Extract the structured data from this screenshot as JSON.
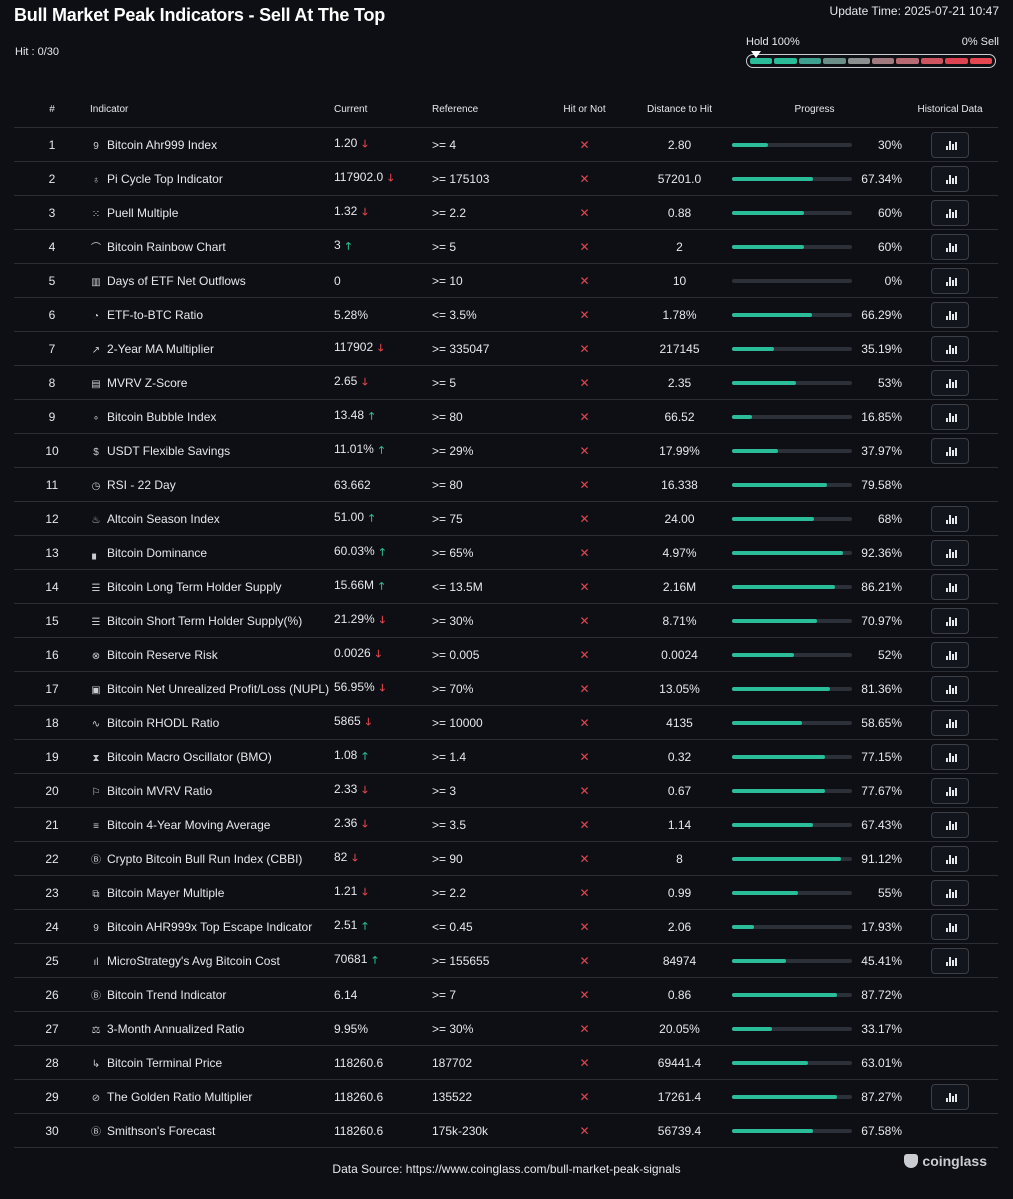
{
  "header": {
    "title": "Bull Market Peak Indicators - Sell At The Top",
    "update_time": "Update Time: 2025-07-21 10:47",
    "hit_count": "Hit : 0/30",
    "hold_label": "Hold 100%",
    "sell_label": "0% Sell",
    "meter_colors": [
      "#2bbd9a",
      "#2bbd9a",
      "#3ea08e",
      "#6a8e88",
      "#8c8f8f",
      "#a07a7e",
      "#b86a72",
      "#cc5560",
      "#dd4350",
      "#e5464f"
    ]
  },
  "columns": {
    "num": "#",
    "indicator": "Indicator",
    "current": "Current",
    "reference": "Reference",
    "hit": "Hit or Not",
    "distance": "Distance to Hit",
    "progress": "Progress",
    "historical": "Historical Data"
  },
  "colors": {
    "accent": "#2bbd9a",
    "down": "#e5464f",
    "up": "#2dbd96",
    "background": "#0d0f14"
  },
  "rows": [
    {
      "num": "1",
      "icon": "ahr999-icon",
      "glyph": "9",
      "name": "Bitcoin Ahr999 Index",
      "current": "1.20",
      "trend": "down",
      "reference": ">= 4",
      "hit": "✕",
      "distance": "2.80",
      "progress": 30,
      "progress_label": "30%",
      "historical": true
    },
    {
      "num": "2",
      "icon": "pi-cycle-icon",
      "glyph": "♁",
      "name": "Pi Cycle Top Indicator",
      "current": "117902.0",
      "trend": "down",
      "reference": ">= 175103",
      "hit": "✕",
      "distance": "57201.0",
      "progress": 67.34,
      "progress_label": "67.34%",
      "historical": true
    },
    {
      "num": "3",
      "icon": "puell-icon",
      "glyph": "⁙",
      "name": "Puell Multiple",
      "current": "1.32",
      "trend": "down",
      "reference": ">= 2.2",
      "hit": "✕",
      "distance": "0.88",
      "progress": 60,
      "progress_label": "60%",
      "historical": true
    },
    {
      "num": "4",
      "icon": "rainbow-icon",
      "glyph": "⌒",
      "name": "Bitcoin Rainbow Chart",
      "current": "3",
      "trend": "up",
      "reference": ">= 5",
      "hit": "✕",
      "distance": "2",
      "progress": 60,
      "progress_label": "60%",
      "historical": true
    },
    {
      "num": "5",
      "icon": "bar-chart-icon",
      "glyph": "▥",
      "name": "Days of ETF Net Outflows",
      "current": "0",
      "trend": "",
      "reference": ">= 10",
      "hit": "✕",
      "distance": "10",
      "progress": 0,
      "progress_label": "0%",
      "historical": true
    },
    {
      "num": "6",
      "icon": "pie-chart-icon",
      "glyph": "◔",
      "name": "ETF-to-BTC Ratio",
      "current": "5.28%",
      "trend": "",
      "reference": "<= 3.5%",
      "hit": "✕",
      "distance": "1.78%",
      "progress": 66.29,
      "progress_label": "66.29%",
      "historical": true
    },
    {
      "num": "7",
      "icon": "line-chart-icon",
      "glyph": "↗",
      "name": "2-Year MA Multiplier",
      "current": "117902",
      "trend": "down",
      "reference": ">= 335047",
      "hit": "✕",
      "distance": "217145",
      "progress": 35.19,
      "progress_label": "35.19%",
      "historical": true
    },
    {
      "num": "8",
      "icon": "mvrv-icon",
      "glyph": "▤",
      "name": "MVRV Z-Score",
      "current": "2.65",
      "trend": "down",
      "reference": ">= 5",
      "hit": "✕",
      "distance": "2.35",
      "progress": 53,
      "progress_label": "53%",
      "historical": true
    },
    {
      "num": "9",
      "icon": "bubble-icon",
      "glyph": "∘",
      "name": "Bitcoin Bubble Index",
      "current": "13.48",
      "trend": "up",
      "reference": ">= 80",
      "hit": "✕",
      "distance": "66.52",
      "progress": 16.85,
      "progress_label": "16.85%",
      "historical": true
    },
    {
      "num": "10",
      "icon": "dollar-icon",
      "glyph": "$",
      "name": "USDT Flexible Savings",
      "current": "11.01%",
      "trend": "up",
      "reference": ">= 29%",
      "hit": "✕",
      "distance": "17.99%",
      "progress": 37.97,
      "progress_label": "37.97%",
      "historical": true
    },
    {
      "num": "11",
      "icon": "clock-icon",
      "glyph": "◷",
      "name": "RSI - 22 Day",
      "current": "63.662",
      "trend": "",
      "reference": ">= 80",
      "hit": "✕",
      "distance": "16.338",
      "progress": 79.58,
      "progress_label": "79.58%",
      "historical": false
    },
    {
      "num": "12",
      "icon": "flame-icon",
      "glyph": "♨",
      "name": "Altcoin Season Index",
      "current": "51.00",
      "trend": "up",
      "reference": ">= 75",
      "hit": "✕",
      "distance": "24.00",
      "progress": 68,
      "progress_label": "68%",
      "historical": true
    },
    {
      "num": "13",
      "icon": "signal-icon",
      "glyph": "▖",
      "name": "Bitcoin Dominance",
      "current": "60.03%",
      "trend": "up",
      "reference": ">= 65%",
      "hit": "✕",
      "distance": "4.97%",
      "progress": 92.36,
      "progress_label": "92.36%",
      "historical": true
    },
    {
      "num": "14",
      "icon": "database-icon",
      "glyph": "☰",
      "name": "Bitcoin Long Term Holder Supply",
      "current": "15.66M",
      "trend": "up",
      "reference": "<= 13.5M",
      "hit": "✕",
      "distance": "2.16M",
      "progress": 86.21,
      "progress_label": "86.21%",
      "historical": true
    },
    {
      "num": "15",
      "icon": "database-icon",
      "glyph": "☰",
      "name": "Bitcoin Short Term Holder Supply(%)",
      "current": "21.29%",
      "trend": "down",
      "reference": ">= 30%",
      "hit": "✕",
      "distance": "8.71%",
      "progress": 70.97,
      "progress_label": "70.97%",
      "historical": true
    },
    {
      "num": "16",
      "icon": "reserve-risk-icon",
      "glyph": "⊗",
      "name": "Bitcoin Reserve Risk",
      "current": "0.0026",
      "trend": "down",
      "reference": ">= 0.005",
      "hit": "✕",
      "distance": "0.0024",
      "progress": 52,
      "progress_label": "52%",
      "historical": true
    },
    {
      "num": "17",
      "icon": "nupl-icon",
      "glyph": "▣",
      "name": "Bitcoin Net Unrealized Profit/Loss (NUPL)",
      "current": "56.95%",
      "trend": "down",
      "reference": ">= 70%",
      "hit": "✕",
      "distance": "13.05%",
      "progress": 81.36,
      "progress_label": "81.36%",
      "historical": true
    },
    {
      "num": "18",
      "icon": "pulse-icon",
      "glyph": "∿",
      "name": "Bitcoin RHODL Ratio",
      "current": "5865",
      "trend": "down",
      "reference": ">= 10000",
      "hit": "✕",
      "distance": "4135",
      "progress": 58.65,
      "progress_label": "58.65%",
      "historical": true
    },
    {
      "num": "19",
      "icon": "hourglass-icon",
      "glyph": "⧗",
      "name": "Bitcoin Macro Oscillator (BMO)",
      "current": "1.08",
      "trend": "up",
      "reference": ">= 1.4",
      "hit": "✕",
      "distance": "0.32",
      "progress": 77.15,
      "progress_label": "77.15%",
      "historical": true
    },
    {
      "num": "20",
      "icon": "flag-icon",
      "glyph": "⚐",
      "name": "Bitcoin MVRV Ratio",
      "current": "2.33",
      "trend": "down",
      "reference": ">= 3",
      "hit": "✕",
      "distance": "0.67",
      "progress": 77.67,
      "progress_label": "77.67%",
      "historical": true
    },
    {
      "num": "21",
      "icon": "list-icon",
      "glyph": "≡",
      "name": "Bitcoin 4-Year Moving Average",
      "current": "2.36",
      "trend": "down",
      "reference": ">= 3.5",
      "hit": "✕",
      "distance": "1.14",
      "progress": 67.43,
      "progress_label": "67.43%",
      "historical": true
    },
    {
      "num": "22",
      "icon": "bitcoin-coin-icon",
      "glyph": "Ⓑ",
      "name": "Crypto Bitcoin Bull Run Index (CBBI)",
      "current": "82",
      "trend": "down",
      "reference": ">= 90",
      "hit": "✕",
      "distance": "8",
      "progress": 91.12,
      "progress_label": "91.12%",
      "historical": true
    },
    {
      "num": "23",
      "icon": "copy-icon",
      "glyph": "⧉",
      "name": "Bitcoin Mayer Multiple",
      "current": "1.21",
      "trend": "down",
      "reference": ">= 2.2",
      "hit": "✕",
      "distance": "0.99",
      "progress": 55,
      "progress_label": "55%",
      "historical": true
    },
    {
      "num": "24",
      "icon": "ahr999-icon",
      "glyph": "9",
      "name": "Bitcoin AHR999x Top Escape Indicator",
      "current": "2.51",
      "trend": "up",
      "reference": "<= 0.45",
      "hit": "✕",
      "distance": "2.06",
      "progress": 17.93,
      "progress_label": "17.93%",
      "historical": true
    },
    {
      "num": "25",
      "icon": "bars-icon",
      "glyph": "ıl",
      "name": "MicroStrategy's Avg Bitcoin Cost",
      "current": "70681",
      "trend": "up",
      "reference": ">= 155655",
      "hit": "✕",
      "distance": "84974",
      "progress": 45.41,
      "progress_label": "45.41%",
      "historical": true
    },
    {
      "num": "26",
      "icon": "bitcoin-coin-icon",
      "glyph": "Ⓑ",
      "name": "Bitcoin Trend Indicator",
      "current": "6.14",
      "trend": "",
      "reference": ">= 7",
      "hit": "✕",
      "distance": "0.86",
      "progress": 87.72,
      "progress_label": "87.72%",
      "historical": false
    },
    {
      "num": "27",
      "icon": "scale-icon",
      "glyph": "⚖",
      "name": "3-Month Annualized Ratio",
      "current": "9.95%",
      "trend": "",
      "reference": ">= 30%",
      "hit": "✕",
      "distance": "20.05%",
      "progress": 33.17,
      "progress_label": "33.17%",
      "historical": false
    },
    {
      "num": "28",
      "icon": "terminal-price-icon",
      "glyph": "↳",
      "name": "Bitcoin Terminal Price",
      "current": "118260.6",
      "trend": "",
      "reference": "187702",
      "hit": "✕",
      "distance": "69441.4",
      "progress": 63.01,
      "progress_label": "63.01%",
      "historical": false
    },
    {
      "num": "29",
      "icon": "golden-ratio-icon",
      "glyph": "⊘",
      "name": "The Golden Ratio Multiplier",
      "current": "118260.6",
      "trend": "",
      "reference": "135522",
      "hit": "✕",
      "distance": "17261.4",
      "progress": 87.27,
      "progress_label": "87.27%",
      "historical": true
    },
    {
      "num": "30",
      "icon": "bitcoin-coin-icon",
      "glyph": "Ⓑ",
      "name": "Smithson's Forecast",
      "current": "118260.6",
      "trend": "",
      "reference": "175k-230k",
      "hit": "✕",
      "distance": "56739.4",
      "progress": 67.58,
      "progress_label": "67.58%",
      "historical": false
    }
  ],
  "footer": {
    "source": "Data Source: https://www.coinglass.com/bull-market-peak-signals",
    "brand": "coinglass"
  }
}
